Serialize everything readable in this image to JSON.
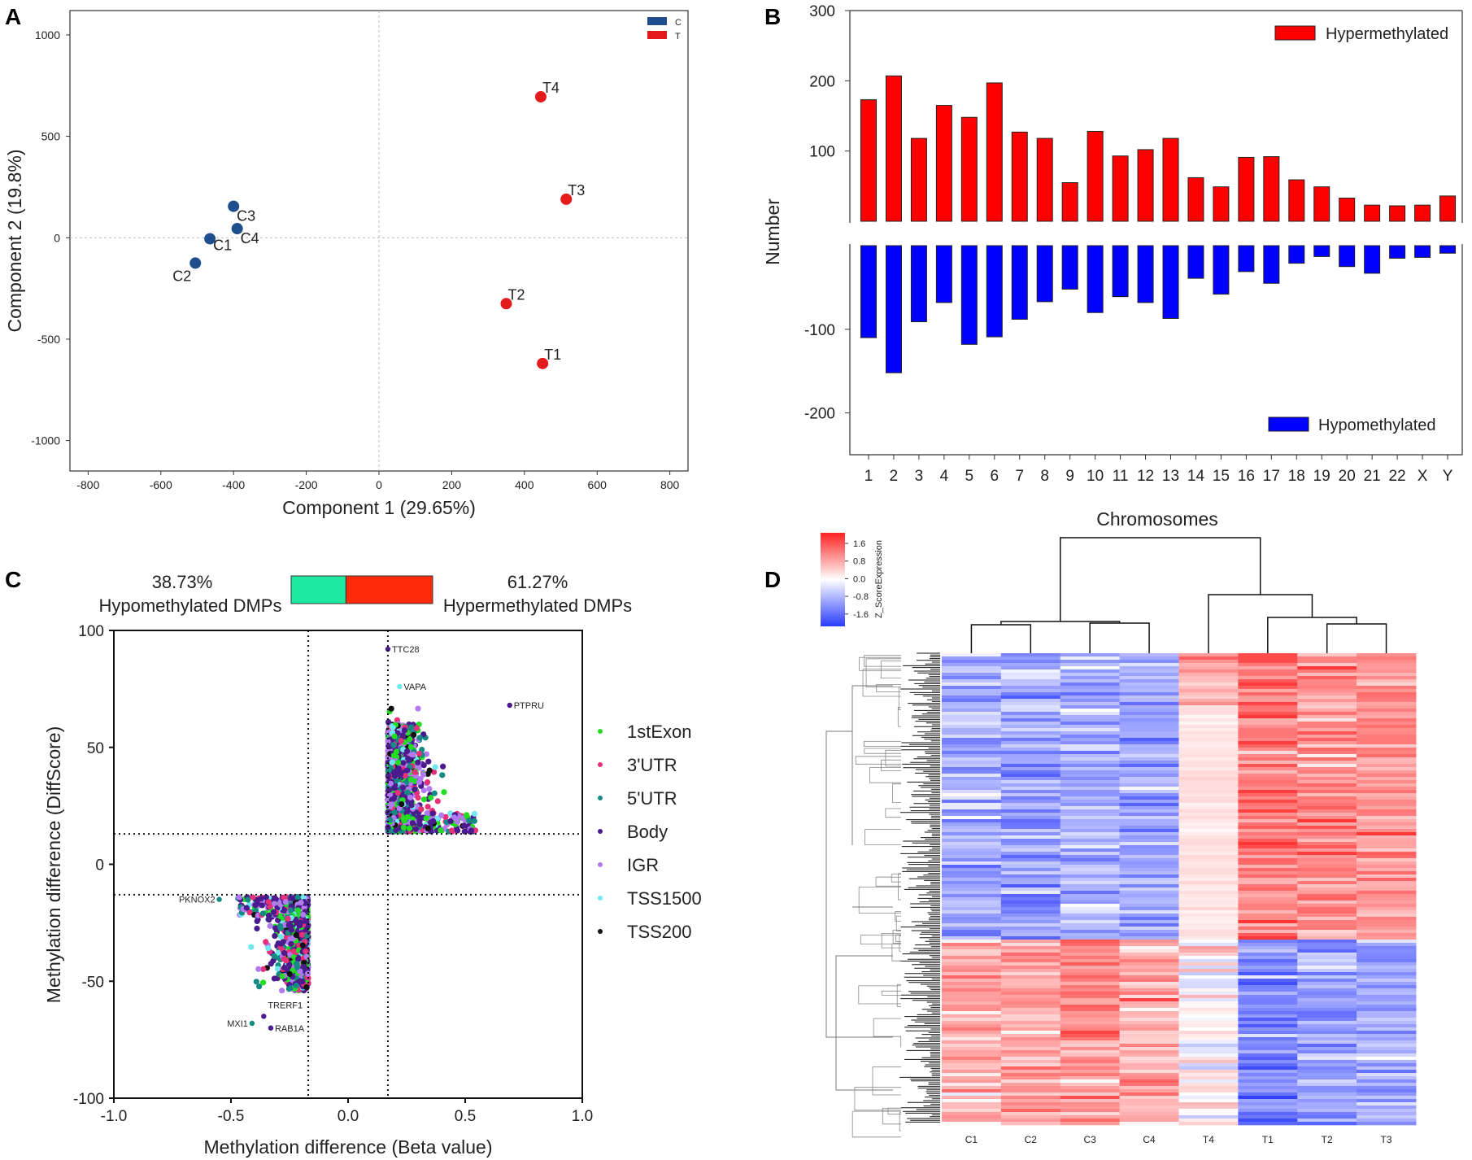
{
  "panels": {
    "A": "A",
    "B": "B",
    "C": "C",
    "D": "D"
  },
  "chart_data": [
    {
      "type": "scatter",
      "panel": "A",
      "title": "",
      "xlabel": "Component 1 (29.65%)",
      "ylabel": "Component 2 (19.8%)",
      "xlim": [
        -850,
        850
      ],
      "ylim": [
        -1150,
        1120
      ],
      "xticks": [
        -800,
        -600,
        -400,
        -200,
        0,
        200,
        400,
        600,
        800
      ],
      "yticks": [
        1000,
        500,
        0,
        -500,
        -1000
      ],
      "legend": [
        {
          "label": "C",
          "color": "#1f4e8c"
        },
        {
          "label": "T",
          "color": "#e41a1c"
        }
      ],
      "points": [
        {
          "label": "C1",
          "group": "C",
          "x": -465,
          "y": -5
        },
        {
          "label": "C2",
          "group": "C",
          "x": -505,
          "y": -125
        },
        {
          "label": "C3",
          "group": "C",
          "x": -400,
          "y": 155
        },
        {
          "label": "C4",
          "group": "C",
          "x": -390,
          "y": 45
        },
        {
          "label": "T1",
          "group": "T",
          "x": 450,
          "y": -620
        },
        {
          "label": "T2",
          "group": "T",
          "x": 350,
          "y": -325
        },
        {
          "label": "T3",
          "group": "T",
          "x": 515,
          "y": 190
        },
        {
          "label": "T4",
          "group": "T",
          "x": 445,
          "y": 695
        }
      ]
    },
    {
      "type": "bar",
      "panel": "B",
      "xlabel": "Chromosomes",
      "ylabel": "Number",
      "categories": [
        "1",
        "2",
        "3",
        "4",
        "5",
        "6",
        "7",
        "8",
        "9",
        "10",
        "11",
        "12",
        "13",
        "14",
        "15",
        "16",
        "17",
        "18",
        "19",
        "20",
        "21",
        "22",
        "X",
        "Y"
      ],
      "upper": {
        "ylim": [
          0,
          300
        ],
        "yticks": [
          100,
          200,
          300
        ]
      },
      "lower": {
        "ylim": [
          -250,
          0
        ],
        "yticks": [
          -100,
          -200
        ]
      },
      "series": [
        {
          "name": "Hypermethylated",
          "color": "#ff0000",
          "values": [
            173,
            207,
            118,
            165,
            148,
            197,
            127,
            118,
            55,
            128,
            93,
            102,
            118,
            62,
            49,
            91,
            92,
            59,
            49,
            33,
            23,
            22,
            23,
            36
          ]
        },
        {
          "name": "Hypomethylated",
          "color": "#0000ff",
          "values": [
            -110,
            -152,
            -91,
            -68,
            -118,
            -109,
            -88,
            -67,
            -52,
            -80,
            -61,
            -68,
            -87,
            -39,
            -58,
            -31,
            -45,
            -21,
            -13,
            -25,
            -33,
            -15,
            -14,
            -9
          ]
        }
      ]
    },
    {
      "type": "scatter",
      "panel": "C",
      "xlabel": "Methylation difference (Beta value)",
      "ylabel": "Methylation difference (DiffScore)",
      "xlim": [
        -1.0,
        1.0
      ],
      "ylim": [
        -100,
        100
      ],
      "xticks": [
        "-1.0",
        "-0.5",
        "0.0",
        "0.5",
        "1.0"
      ],
      "yticks": [
        "100",
        "50",
        "0",
        "-50",
        "-100"
      ],
      "thresholds": {
        "x": [
          -0.17,
          0.17
        ],
        "y": [
          -13,
          13
        ]
      },
      "summary": {
        "hypo_pct": "38.73%",
        "hypo_label": "Hypomethylated DMPs",
        "hypo_color": "#1de9a0",
        "hypo_value": 38.73,
        "hyper_pct": "61.27%",
        "hyper_label": "Hypermethylated DMPs",
        "hyper_color": "#ff2a0a",
        "hyper_value": 61.27
      },
      "legend": [
        {
          "label": "1stExon",
          "color": "#22dd22"
        },
        {
          "label": "3'UTR",
          "color": "#e8307a"
        },
        {
          "label": "5'UTR",
          "color": "#138a82"
        },
        {
          "label": "Body",
          "color": "#4b1a8c"
        },
        {
          "label": "IGR",
          "color": "#b27af0"
        },
        {
          "label": "TSS1500",
          "color": "#6fe8f0"
        },
        {
          "label": "TSS200",
          "color": "#111111"
        }
      ],
      "labeled_points": [
        {
          "label": "TTC28",
          "x": 0.17,
          "y": 92,
          "group": "Body"
        },
        {
          "label": "VAPA",
          "x": 0.22,
          "y": 76,
          "group": "TSS1500"
        },
        {
          "label": "PTPRU",
          "x": 0.69,
          "y": 68,
          "group": "Body"
        },
        {
          "label": "PKNOX2",
          "x": -0.55,
          "y": -15,
          "group": "5'UTR"
        },
        {
          "label": "TRERF1",
          "x": -0.36,
          "y": -65,
          "group": "Body"
        },
        {
          "label": "MXI1",
          "x": -0.41,
          "y": -68,
          "group": "5'UTR"
        },
        {
          "label": "RAB1A",
          "x": -0.33,
          "y": -70,
          "group": "Body"
        }
      ]
    },
    {
      "type": "heatmap",
      "panel": "D",
      "columns": [
        "C1",
        "C2",
        "C3",
        "C4",
        "T4",
        "T1",
        "T2",
        "T3"
      ],
      "colorbar": {
        "title": "Z_ScoreExpression",
        "ticks": [
          "1.6",
          "0.8",
          "0.0",
          "-0.8",
          "-1.6"
        ],
        "min": -2.0,
        "max": 2.0
      },
      "row_clusters": [
        {
          "name": "hypermethylated-cluster",
          "fraction": 0.61,
          "z_by_column": [
            -0.8,
            -1.0,
            -0.8,
            -0.9,
            0.9,
            1.3,
            1.1,
            1.1
          ]
        },
        {
          "name": "hypomethylated-cluster",
          "fraction": 0.39,
          "z_by_column": [
            0.8,
            0.9,
            1.0,
            0.8,
            0.1,
            -1.2,
            -1.0,
            -0.9
          ]
        }
      ]
    }
  ]
}
